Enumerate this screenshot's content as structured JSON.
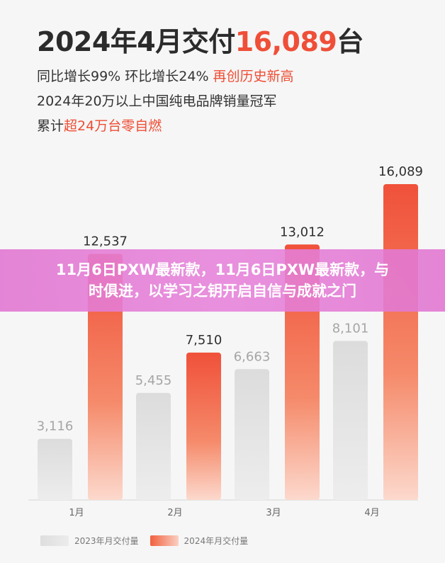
{
  "header": {
    "title_prefix": "2024年4月交付",
    "title_highlight": "16,089",
    "title_suffix": "台",
    "line1_plain": "同比增长99% 环比增长24% ",
    "line1_highlight": "再创历史新高",
    "line2": "2024年20万以上中国纯电品牌销量冠军",
    "line3_plain": "累计",
    "line3_highlight": "超24万台零自燃"
  },
  "banner": {
    "line1": "11月6日PXW最新款，11月6日PXW最新款，与",
    "line2": "时俱进，以学习之钥开启自信与成就之门"
  },
  "chart_data": {
    "type": "bar",
    "categories": [
      "1月",
      "2月",
      "3月",
      "4月"
    ],
    "series": [
      {
        "name": "2023年月交付量",
        "values": [
          3116,
          5455,
          6663,
          8101
        ],
        "labels": [
          "3,116",
          "5,455",
          "6,663",
          "8,101"
        ],
        "color": "#e2e2e2"
      },
      {
        "name": "2024年月交付量",
        "values": [
          12537,
          7510,
          13012,
          16089
        ],
        "labels": [
          "12,537",
          "7,510",
          "13,012",
          "16,089"
        ],
        "color": "#f1563a"
      }
    ],
    "ylim": [
      0,
      16089
    ],
    "grid": false,
    "legend": "bottom"
  }
}
